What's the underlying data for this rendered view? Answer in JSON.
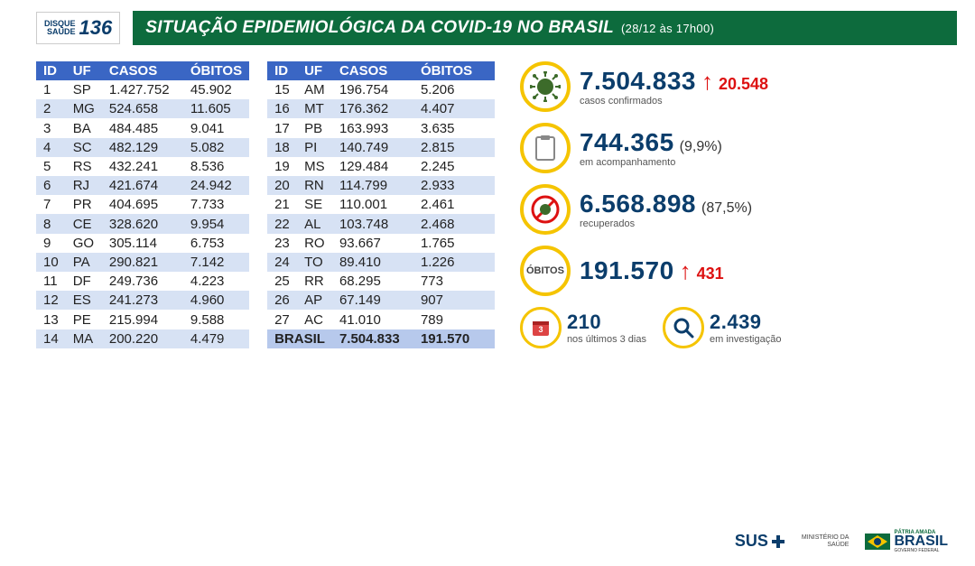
{
  "header": {
    "disque_label": "DISQUE\nSAÚDE",
    "disque_num": "136",
    "title": "SITUAÇÃO EPIDEMIOLÓGICA DA COVID-19 NO BRASIL",
    "date": "(28/12 às 17h00)",
    "banner_color": "#0d6b3d"
  },
  "table": {
    "columns": [
      "ID",
      "UF",
      "CASOS",
      "ÓBITOS"
    ],
    "header_bg": "#3a66c4",
    "alt_row_bg": "#d7e2f4",
    "total_row_bg": "#b7c9ec",
    "left_rows": [
      {
        "id": "1",
        "uf": "SP",
        "casos": "1.427.752",
        "obitos": "45.902"
      },
      {
        "id": "2",
        "uf": "MG",
        "casos": "524.658",
        "obitos": "11.605"
      },
      {
        "id": "3",
        "uf": "BA",
        "casos": "484.485",
        "obitos": "9.041"
      },
      {
        "id": "4",
        "uf": "SC",
        "casos": "482.129",
        "obitos": "5.082"
      },
      {
        "id": "5",
        "uf": "RS",
        "casos": "432.241",
        "obitos": "8.536"
      },
      {
        "id": "6",
        "uf": "RJ",
        "casos": "421.674",
        "obitos": "24.942"
      },
      {
        "id": "7",
        "uf": "PR",
        "casos": "404.695",
        "obitos": "7.733"
      },
      {
        "id": "8",
        "uf": "CE",
        "casos": "328.620",
        "obitos": "9.954"
      },
      {
        "id": "9",
        "uf": "GO",
        "casos": "305.114",
        "obitos": "6.753"
      },
      {
        "id": "10",
        "uf": "PA",
        "casos": "290.821",
        "obitos": "7.142"
      },
      {
        "id": "11",
        "uf": "DF",
        "casos": "249.736",
        "obitos": "4.223"
      },
      {
        "id": "12",
        "uf": "ES",
        "casos": "241.273",
        "obitos": "4.960"
      },
      {
        "id": "13",
        "uf": "PE",
        "casos": "215.994",
        "obitos": "9.588"
      },
      {
        "id": "14",
        "uf": "MA",
        "casos": "200.220",
        "obitos": "4.479"
      }
    ],
    "right_rows": [
      {
        "id": "15",
        "uf": "AM",
        "casos": "196.754",
        "obitos": "5.206"
      },
      {
        "id": "16",
        "uf": "MT",
        "casos": "176.362",
        "obitos": "4.407"
      },
      {
        "id": "17",
        "uf": "PB",
        "casos": "163.993",
        "obitos": "3.635"
      },
      {
        "id": "18",
        "uf": "PI",
        "casos": "140.749",
        "obitos": "2.815"
      },
      {
        "id": "19",
        "uf": "MS",
        "casos": "129.484",
        "obitos": "2.245"
      },
      {
        "id": "20",
        "uf": "RN",
        "casos": "114.799",
        "obitos": "2.933"
      },
      {
        "id": "21",
        "uf": "SE",
        "casos": "110.001",
        "obitos": "2.461"
      },
      {
        "id": "22",
        "uf": "AL",
        "casos": "103.748",
        "obitos": "2.468"
      },
      {
        "id": "23",
        "uf": "RO",
        "casos": "93.667",
        "obitos": "1.765"
      },
      {
        "id": "24",
        "uf": "TO",
        "casos": "89.410",
        "obitos": "1.226"
      },
      {
        "id": "25",
        "uf": "RR",
        "casos": "68.295",
        "obitos": "773"
      },
      {
        "id": "26",
        "uf": "AP",
        "casos": "67.149",
        "obitos": "907"
      },
      {
        "id": "27",
        "uf": "AC",
        "casos": "41.010",
        "obitos": "789"
      }
    ],
    "total": {
      "label": "BRASIL",
      "casos": "7.504.833",
      "obitos": "191.570"
    }
  },
  "stats": {
    "accent_color": "#0b3d6b",
    "ring_color": "#f5c400",
    "delta_color": "#dd1111",
    "confirmed": {
      "value": "7.504.833",
      "delta": "20.548",
      "label": "casos confirmados"
    },
    "monitoring": {
      "value": "744.365",
      "pct": "(9,9%)",
      "label": "em acompanhamento"
    },
    "recovered": {
      "value": "6.568.898",
      "pct": "(87,5%)",
      "label": "recuperados"
    },
    "deaths": {
      "icon_text": "ÓBITOS",
      "value": "191.570",
      "delta": "431"
    },
    "last3": {
      "value": "210",
      "label": "nos últimos 3 dias"
    },
    "investigation": {
      "value": "2.439",
      "label": "em investigação"
    }
  },
  "footer": {
    "sus": "SUS",
    "ministerio": "MINISTÉRIO DA\nSAÚDE",
    "patria": "PÁTRIA AMADA",
    "brasil": "BRASIL",
    "gov": "GOVERNO FEDERAL"
  }
}
